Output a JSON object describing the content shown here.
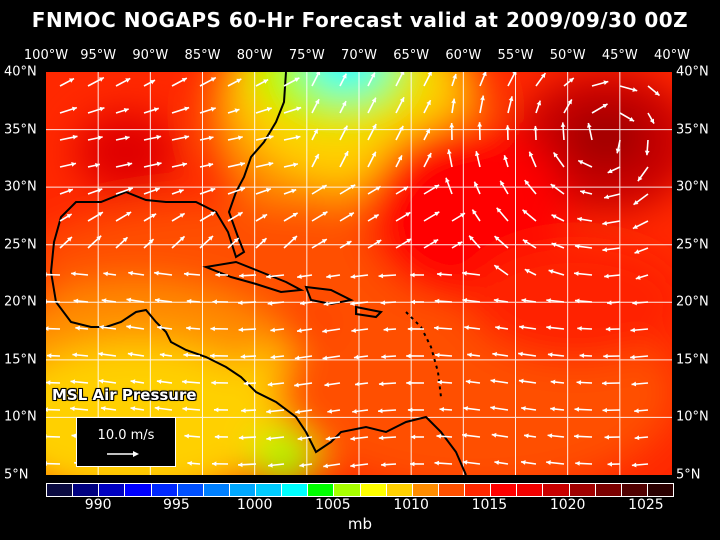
{
  "title": "FNMOC NOGAPS 60-Hr Forecast valid at 2009/09/30 00Z",
  "longitude_labels": [
    "100°W",
    "95°W",
    "90°W",
    "85°W",
    "80°W",
    "75°W",
    "70°W",
    "65°W",
    "60°W",
    "55°W",
    "50°W",
    "45°W",
    "40°W"
  ],
  "latitude_labels": [
    "40°N",
    "35°N",
    "30°N",
    "25°N",
    "20°N",
    "15°N",
    "10°N",
    "5°N"
  ],
  "field_label": "MSL Air Pressure",
  "reference_vector": {
    "label": "10.0 m/s"
  },
  "colorbar": {
    "tick_labels": [
      "990",
      "995",
      "1000",
      "1005",
      "1010",
      "1015",
      "1020",
      "1025"
    ],
    "unit": "mb",
    "colors": [
      "#0a0a40",
      "#000080",
      "#0000c0",
      "#0000ff",
      "#0028ff",
      "#0050ff",
      "#0080ff",
      "#00a8ff",
      "#00ccff",
      "#00ffff",
      "#00ff00",
      "#a8ff00",
      "#ffff00",
      "#ffd000",
      "#ff8c00",
      "#ff5000",
      "#ff2800",
      "#ff0000",
      "#f00000",
      "#c80000",
      "#a00000",
      "#7a0000",
      "#500000",
      "#2a0000"
    ]
  }
}
